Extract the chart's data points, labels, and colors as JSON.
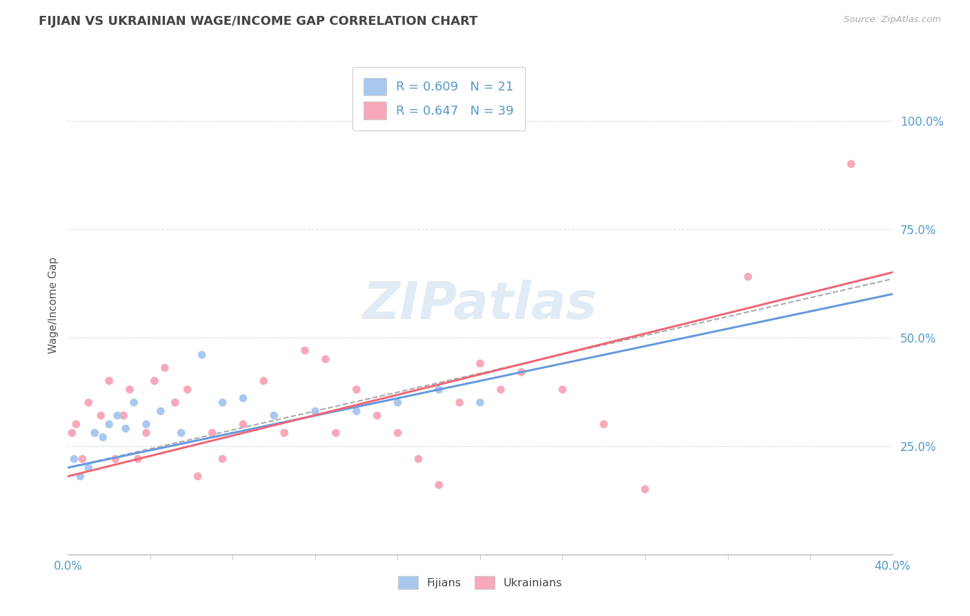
{
  "title": "FIJIAN VS UKRAINIAN WAGE/INCOME GAP CORRELATION CHART",
  "source": "Source: ZipAtlas.com",
  "ylabel": "Wage/Income Gap",
  "watermark_text": "ZIPatlas",
  "legend_fijian_label": "R = 0.609   N = 21",
  "legend_ukrainian_label": "R = 0.647   N = 39",
  "bottom_legend_fijians": "Fijians",
  "bottom_legend_ukrainians": "Ukrainians",
  "fijian_scatter_color": "#a8c8f0",
  "ukrainian_scatter_color": "#f8a8b8",
  "fijian_trend_color": "#6699dd",
  "ukrainian_trend_color": "#ee6677",
  "dashed_trend_color": "#aaaaaa",
  "grid_color": "#dddddd",
  "background_color": "#ffffff",
  "axis_label_color": "#5599cc",
  "title_color": "#444444",
  "source_color": "#aaaaaa",
  "ylabel_color": "#555555",
  "xlim": [
    0,
    40
  ],
  "ylim": [
    0,
    115
  ],
  "ytick_positions": [
    25,
    50,
    75,
    100
  ],
  "ytick_labels": [
    "25.0%",
    "50.0%",
    "75.0%",
    "100.0%"
  ],
  "fijians_x": [
    0.3,
    0.6,
    1.0,
    1.3,
    1.7,
    2.0,
    2.4,
    2.8,
    3.2,
    3.8,
    4.5,
    5.5,
    6.5,
    7.5,
    8.5,
    10.0,
    12.0,
    14.0,
    16.0,
    18.0,
    20.0
  ],
  "fijians_y": [
    22,
    18,
    20,
    28,
    27,
    30,
    32,
    29,
    35,
    30,
    33,
    28,
    46,
    35,
    36,
    32,
    33,
    33,
    35,
    38,
    35
  ],
  "ukrainians_x": [
    0.2,
    0.4,
    0.7,
    1.0,
    1.3,
    1.6,
    2.0,
    2.3,
    2.7,
    3.0,
    3.4,
    3.8,
    4.2,
    4.7,
    5.2,
    5.8,
    6.3,
    7.0,
    7.5,
    8.5,
    9.5,
    10.5,
    11.5,
    12.5,
    13.0,
    14.0,
    15.0,
    16.0,
    17.0,
    18.0,
    19.0,
    20.0,
    21.0,
    22.0,
    24.0,
    26.0,
    28.0,
    33.0,
    38.0
  ],
  "ukrainians_y": [
    28,
    30,
    22,
    35,
    28,
    32,
    40,
    22,
    32,
    38,
    22,
    28,
    40,
    43,
    35,
    38,
    18,
    28,
    22,
    30,
    40,
    28,
    47,
    45,
    28,
    38,
    32,
    28,
    22,
    16,
    35,
    44,
    38,
    42,
    38,
    30,
    15,
    64,
    90
  ]
}
